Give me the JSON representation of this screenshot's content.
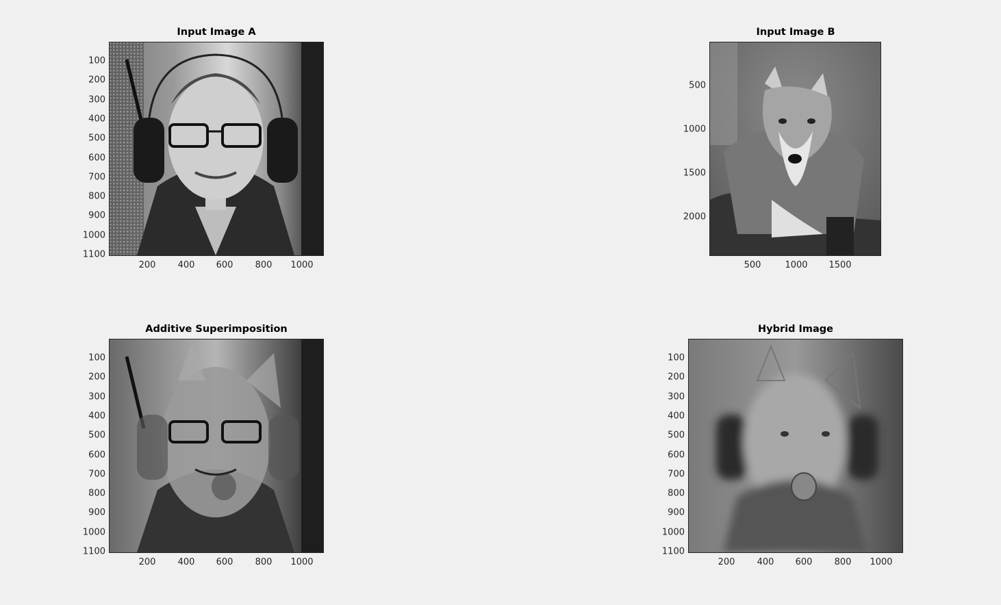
{
  "figure": {
    "background": "#f0f0f0",
    "panels": [
      {
        "id": "input-a",
        "title": "Input Image A",
        "image": "grayscale-portrait-man-glasses-earmuffs",
        "xticks": [
          "200",
          "400",
          "600",
          "800",
          "1000"
        ],
        "yticks": [
          "100",
          "200",
          "300",
          "400",
          "500",
          "600",
          "700",
          "800",
          "900",
          "1000",
          "1100"
        ]
      },
      {
        "id": "input-b",
        "title": "Input Image B",
        "image": "grayscale-wolf",
        "xticks": [
          "500",
          "1000",
          "1500"
        ],
        "yticks": [
          "500",
          "1000",
          "1500",
          "2000"
        ]
      },
      {
        "id": "additive",
        "title": "Additive Superimposition",
        "image": "superimposed-man-and-wolf",
        "xticks": [
          "200",
          "400",
          "600",
          "800",
          "1000"
        ],
        "yticks": [
          "100",
          "200",
          "300",
          "400",
          "500",
          "600",
          "700",
          "800",
          "900",
          "1000",
          "1100"
        ]
      },
      {
        "id": "hybrid",
        "title": "Hybrid Image",
        "image": "hybrid-man-wolf",
        "xticks": [
          "200",
          "400",
          "600",
          "800",
          "1000"
        ],
        "yticks": [
          "100",
          "200",
          "300",
          "400",
          "500",
          "600",
          "700",
          "800",
          "900",
          "1000",
          "1100"
        ]
      }
    ]
  }
}
